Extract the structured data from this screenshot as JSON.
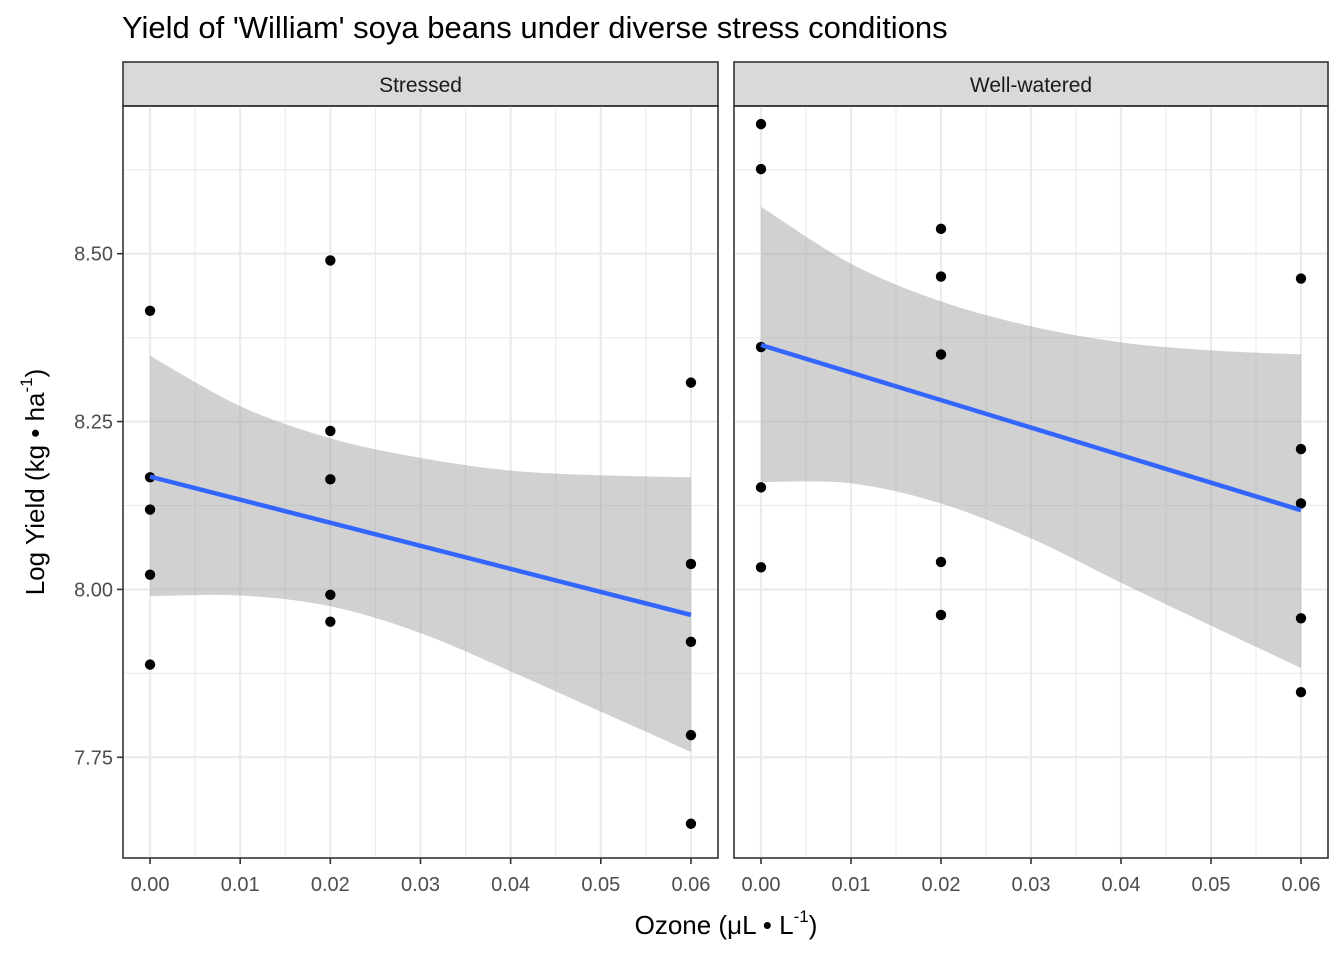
{
  "chart_data": {
    "type": "scatter",
    "title": "Yield of 'William' soya beans under diverse stress conditions",
    "xlabel_parts": [
      "Ozone (μL • L",
      "-1",
      ")"
    ],
    "ylabel_parts": [
      "Log Yield (kg • ha",
      "-1",
      ")"
    ],
    "xlim": [
      -0.003,
      0.063
    ],
    "ylim": [
      7.6,
      8.72
    ],
    "x_ticks": [
      0,
      0.01,
      0.02,
      0.03,
      0.04,
      0.05,
      0.06
    ],
    "x_tick_labels": [
      "0.00",
      "0.01",
      "0.02",
      "0.03",
      "0.04",
      "0.05",
      "0.06"
    ],
    "y_ticks": [
      7.75,
      8.0,
      8.25,
      8.5
    ],
    "y_tick_labels": [
      "7.75",
      "8.00",
      "8.25",
      "8.50"
    ],
    "grid": true,
    "panels": [
      {
        "name": "Stressed",
        "points": [
          {
            "x": 0.0,
            "y": 8.415
          },
          {
            "x": 0.0,
            "y": 8.167
          },
          {
            "x": 0.0,
            "y": 8.119
          },
          {
            "x": 0.0,
            "y": 8.022
          },
          {
            "x": 0.0,
            "y": 7.888
          },
          {
            "x": 0.02,
            "y": 8.49
          },
          {
            "x": 0.02,
            "y": 8.236
          },
          {
            "x": 0.02,
            "y": 8.164
          },
          {
            "x": 0.02,
            "y": 7.992
          },
          {
            "x": 0.02,
            "y": 7.952
          },
          {
            "x": 0.06,
            "y": 8.308
          },
          {
            "x": 0.06,
            "y": 8.038
          },
          {
            "x": 0.06,
            "y": 7.922
          },
          {
            "x": 0.06,
            "y": 7.783
          },
          {
            "x": 0.06,
            "y": 7.651
          }
        ],
        "fit": {
          "x": [
            0,
            0.06
          ],
          "y": [
            8.168,
            7.962
          ]
        },
        "band": [
          {
            "x": 0.0,
            "lower": 7.99,
            "upper": 8.348
          },
          {
            "x": 0.01,
            "lower": 7.991,
            "upper": 8.273
          },
          {
            "x": 0.02,
            "lower": 7.975,
            "upper": 8.225
          },
          {
            "x": 0.03,
            "lower": 7.935,
            "upper": 8.196
          },
          {
            "x": 0.04,
            "lower": 7.878,
            "upper": 8.177
          },
          {
            "x": 0.05,
            "lower": 7.818,
            "upper": 8.17
          },
          {
            "x": 0.06,
            "lower": 7.758,
            "upper": 8.167
          }
        ]
      },
      {
        "name": "Well-watered",
        "points": [
          {
            "x": 0.0,
            "y": 8.693
          },
          {
            "x": 0.0,
            "y": 8.626
          },
          {
            "x": 0.0,
            "y": 8.361
          },
          {
            "x": 0.0,
            "y": 8.152
          },
          {
            "x": 0.0,
            "y": 8.033
          },
          {
            "x": 0.02,
            "y": 8.537
          },
          {
            "x": 0.02,
            "y": 8.466
          },
          {
            "x": 0.02,
            "y": 8.35
          },
          {
            "x": 0.02,
            "y": 8.041
          },
          {
            "x": 0.02,
            "y": 7.962
          },
          {
            "x": 0.06,
            "y": 8.463
          },
          {
            "x": 0.06,
            "y": 8.209
          },
          {
            "x": 0.06,
            "y": 8.128
          },
          {
            "x": 0.06,
            "y": 7.957
          },
          {
            "x": 0.06,
            "y": 7.847
          }
        ],
        "fit": {
          "x": [
            0,
            0.06
          ],
          "y": [
            8.364,
            8.118
          ]
        },
        "band": [
          {
            "x": 0.0,
            "lower": 8.16,
            "upper": 8.57
          },
          {
            "x": 0.01,
            "lower": 8.158,
            "upper": 8.485
          },
          {
            "x": 0.02,
            "lower": 8.128,
            "upper": 8.429
          },
          {
            "x": 0.03,
            "lower": 8.076,
            "upper": 8.392
          },
          {
            "x": 0.04,
            "lower": 8.01,
            "upper": 8.368
          },
          {
            "x": 0.05,
            "lower": 7.946,
            "upper": 8.356
          },
          {
            "x": 0.06,
            "lower": 7.883,
            "upper": 8.35
          }
        ]
      }
    ],
    "colors": {
      "fit": "#3366ff",
      "band": "#999999",
      "point": "#000000",
      "strip": "#d9d9d9"
    }
  }
}
